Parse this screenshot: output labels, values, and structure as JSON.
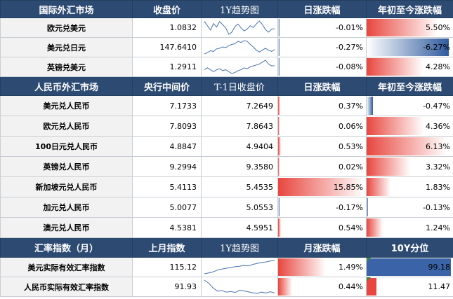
{
  "colors": {
    "header_bg": "#2d4a72",
    "positive_bar": "#e8463f",
    "negative_bar": "#2f5b9e",
    "spark_line": "#4a72b0",
    "index_mark": "#2f8f3a"
  },
  "fx": {
    "headers": [
      "国际外汇市场",
      "收盘价",
      "1Y趋势图",
      "日涨跌幅",
      "年初至今涨跌幅"
    ],
    "rows": [
      {
        "name": "欧元兑美元",
        "close": "1.0832",
        "daily": "-0.01%",
        "daily_val": -0.01,
        "ytd": "5.50%",
        "ytd_val": 5.5
      },
      {
        "name": "美元兑日元",
        "close": "147.6410",
        "daily": "-0.27%",
        "daily_val": -0.27,
        "ytd": "-6.27%",
        "ytd_val": -6.27
      },
      {
        "name": "英镑兑美元",
        "close": "1.2911",
        "daily": "-0.08%",
        "daily_val": -0.08,
        "ytd": "4.28%",
        "ytd_val": 4.28
      }
    ]
  },
  "rmb": {
    "headers": [
      "人民币外汇市场",
      "央行中间价",
      "T-1日收盘价",
      "日涨跌幅",
      "年初至今涨跌幅"
    ],
    "rows": [
      {
        "name": "美元兑人民币",
        "mid": "7.1733",
        "prev": "7.2649",
        "daily": "0.37%",
        "daily_val": 0.37,
        "ytd": "-0.47%",
        "ytd_val": -0.47
      },
      {
        "name": "欧元兑人民币",
        "mid": "7.8093",
        "prev": "7.8643",
        "daily": "0.06%",
        "daily_val": 0.06,
        "ytd": "4.36%",
        "ytd_val": 4.36
      },
      {
        "name": "100日元兑人民币",
        "mid": "4.8847",
        "prev": "4.9404",
        "daily": "0.53%",
        "daily_val": 0.53,
        "ytd": "6.13%",
        "ytd_val": 6.13
      },
      {
        "name": "英镑兑人民币",
        "mid": "9.2994",
        "prev": "9.3580",
        "daily": "0.02%",
        "daily_val": 0.02,
        "ytd": "3.32%",
        "ytd_val": 3.32
      },
      {
        "name": "新加坡元兑人民币",
        "mid": "5.4113",
        "prev": "5.4535",
        "daily": "15.85%",
        "daily_val": 15.85,
        "ytd": "1.83%",
        "ytd_val": 1.83
      },
      {
        "name": "加元兑人民币",
        "mid": "5.0077",
        "prev": "5.0553",
        "daily": "-0.17%",
        "daily_val": -0.17,
        "ytd": "-0.13%",
        "ytd_val": -0.13
      },
      {
        "name": "澳元兑人民币",
        "mid": "4.5381",
        "prev": "4.5951",
        "daily": "0.54%",
        "daily_val": 0.54,
        "ytd": "1.24%",
        "ytd_val": 1.24
      }
    ]
  },
  "index": {
    "headers": [
      "汇率指数（月）",
      "上月指数",
      "1Y趋势图",
      "月涨跌幅",
      "10Y分位"
    ],
    "rows": [
      {
        "name": "美元实际有效汇率指数",
        "last": "115.12",
        "monthly": "1.49%",
        "monthly_val": 1.49,
        "pct": "99.18",
        "pct_val": 99.18,
        "pct_color": "#3b64a8"
      },
      {
        "name": "人民币实际有效汇率指数",
        "last": "91.93",
        "monthly": "0.44%",
        "monthly_val": 0.44,
        "pct": "11.47",
        "pct_val": 11.47,
        "pct_color": "#e8463f"
      }
    ]
  },
  "sparklines": {
    "fx_0": [
      1.1,
      1.09,
      1.08,
      1.095,
      1.087,
      1.1,
      1.092,
      1.085,
      1.07,
      1.075,
      1.088,
      1.094,
      1.085,
      1.078,
      1.082,
      1.09,
      1.086,
      1.094,
      1.101,
      1.093,
      1.081,
      1.075,
      1.082,
      1.083
    ],
    "fx_1": [
      140,
      142,
      145,
      144,
      148,
      149,
      151,
      150,
      153,
      155,
      156,
      160,
      158,
      161,
      160,
      155,
      151,
      146,
      143,
      146,
      149,
      146,
      144,
      147
    ],
    "fx_2": [
      1.27,
      1.28,
      1.27,
      1.26,
      1.27,
      1.275,
      1.265,
      1.27,
      1.26,
      1.25,
      1.255,
      1.265,
      1.27,
      1.28,
      1.275,
      1.285,
      1.29,
      1.295,
      1.3,
      1.31,
      1.32,
      1.3,
      1.29,
      1.291
    ],
    "idx_0": [
      108,
      108.5,
      109,
      110,
      110.5,
      111,
      111.2,
      111.8,
      112,
      112.5,
      112.2,
      113,
      113.5,
      114,
      114.3,
      114.8,
      115.1
    ],
    "idx_1": [
      96,
      95,
      93.5,
      92.5,
      92.7,
      92.2,
      92.4,
      92.1,
      92.8,
      92.6,
      92.3,
      92.0,
      91.8,
      92.2,
      91.9,
      92.3,
      91.93
    ]
  }
}
